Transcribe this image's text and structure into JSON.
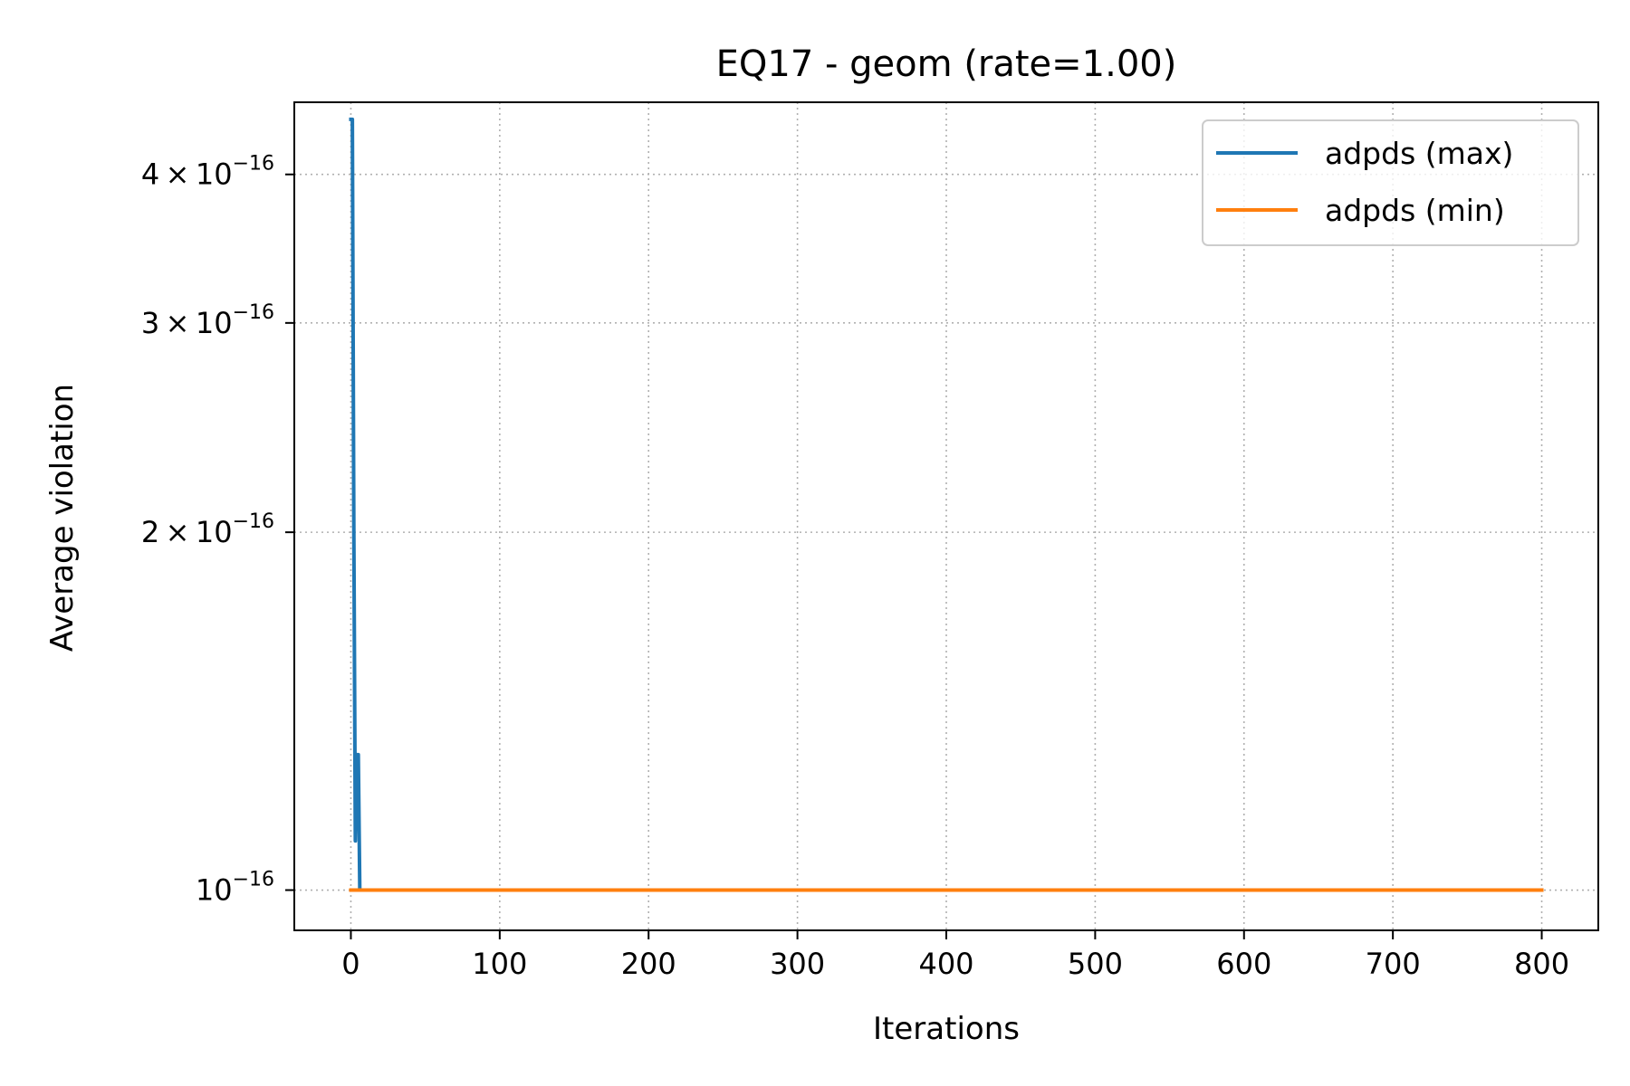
{
  "chart_data": {
    "type": "line",
    "title": "EQ17 - geom (rate=1.00)",
    "xlabel": "Iterations",
    "ylabel": "Average violation",
    "xlim": [
      -38,
      838
    ],
    "ylim": [
      9.25e-17,
      4.6e-16
    ],
    "yscale": "log",
    "grid": true,
    "grid_style": "dotted",
    "legend_position": "upper right",
    "x_ticks": [
      {
        "value": 0,
        "label": "0"
      },
      {
        "value": 100,
        "label": "100"
      },
      {
        "value": 200,
        "label": "200"
      },
      {
        "value": 300,
        "label": "300"
      },
      {
        "value": 400,
        "label": "400"
      },
      {
        "value": 500,
        "label": "500"
      },
      {
        "value": 600,
        "label": "600"
      },
      {
        "value": 700,
        "label": "700"
      },
      {
        "value": 800,
        "label": "800"
      }
    ],
    "y_ticks": [
      {
        "value": 1e-16,
        "mantissa": "",
        "base": "10",
        "exponent": "−16"
      },
      {
        "value": 2e-16,
        "mantissa": "2 × 10",
        "base": "",
        "exponent": "−16"
      },
      {
        "value": 3e-16,
        "mantissa": "3 × 10",
        "base": "",
        "exponent": "−16"
      },
      {
        "value": 4e-16,
        "mantissa": "4 × 10",
        "base": "",
        "exponent": "−16"
      }
    ],
    "series": [
      {
        "name": "adpds (max)",
        "color": "#1f77b4",
        "x": [
          0,
          1,
          2,
          3,
          4,
          5,
          6,
          7,
          800
        ],
        "y": [
          4.45e-16,
          4.45e-16,
          2e-16,
          1.1e-16,
          1.3e-16,
          1.3e-16,
          1e-16,
          1e-16,
          1e-16
        ]
      },
      {
        "name": "adpds (min)",
        "color": "#ff7f0e",
        "x": [
          0,
          800
        ],
        "y": [
          1e-16,
          1e-16
        ]
      }
    ]
  }
}
